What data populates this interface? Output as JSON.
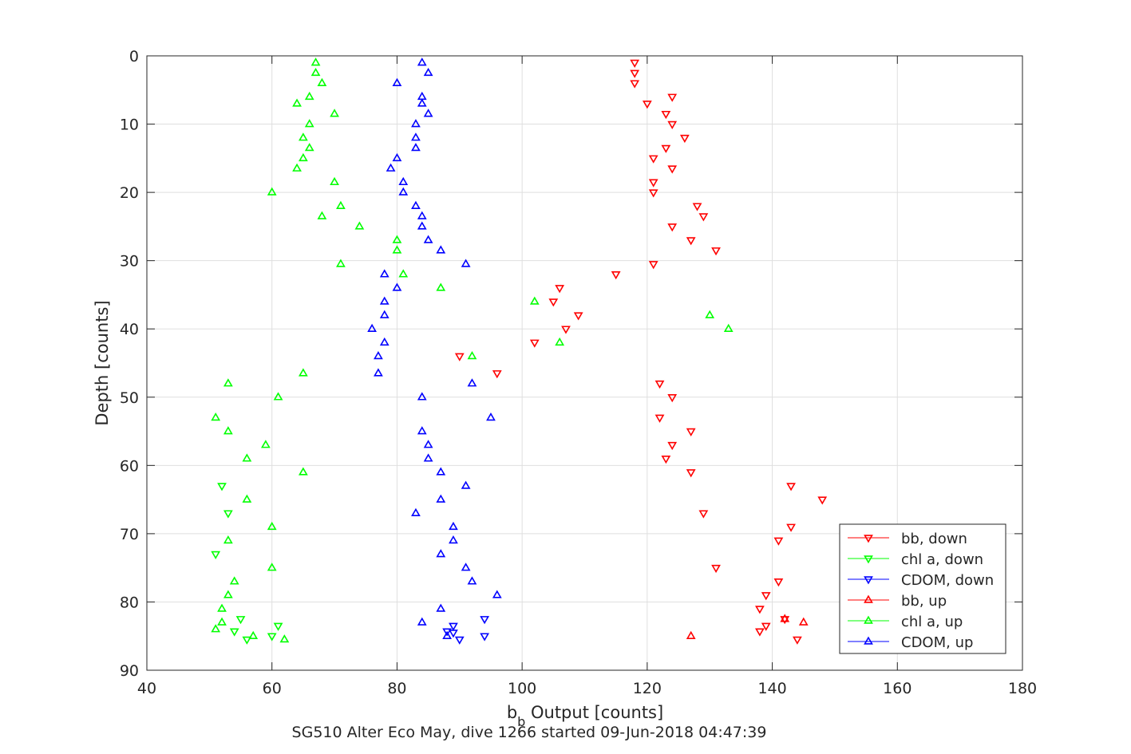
{
  "chart_data": {
    "type": "scatter",
    "title": "",
    "caption": "SG510 Alter Eco May, dive 1266 started 09-Jun-2018 04:47:39",
    "xlabel_main": "b",
    "xlabel_sub": "b",
    "xlabel_rest": " Output [counts]",
    "ylabel": "Depth [counts]",
    "xlim": [
      40,
      180
    ],
    "ylim": [
      0,
      90
    ],
    "y_reversed": true,
    "grid": true,
    "legend_position": "bottom-right",
    "xticks": [
      "40",
      "60",
      "80",
      "100",
      "120",
      "140",
      "160",
      "180"
    ],
    "yticks": [
      "0",
      "10",
      "20",
      "30",
      "40",
      "50",
      "60",
      "70",
      "80",
      "90"
    ],
    "series": [
      {
        "name": "bb, down",
        "color": "#ff0000",
        "marker": "triangle-down",
        "points": [
          [
            118,
            1
          ],
          [
            118,
            2.5
          ],
          [
            118,
            4
          ],
          [
            124,
            6
          ],
          [
            120,
            7
          ],
          [
            123,
            8.5
          ],
          [
            124,
            10
          ],
          [
            126,
            12
          ],
          [
            123,
            13.5
          ],
          [
            121,
            15
          ],
          [
            124,
            16.5
          ],
          [
            121,
            18.5
          ],
          [
            121,
            20
          ],
          [
            128,
            22
          ],
          [
            129,
            23.5
          ],
          [
            124,
            25
          ],
          [
            127,
            27
          ],
          [
            131,
            28.5
          ],
          [
            121,
            30.5
          ],
          [
            115,
            32
          ],
          [
            106,
            34
          ],
          [
            105,
            36
          ],
          [
            109,
            38
          ],
          [
            107,
            40
          ],
          [
            102,
            42
          ],
          [
            90,
            44
          ],
          [
            96,
            46.5
          ],
          [
            122,
            48
          ],
          [
            124,
            50
          ],
          [
            122,
            53
          ],
          [
            127,
            55
          ],
          [
            124,
            57
          ],
          [
            123,
            59
          ],
          [
            127,
            61
          ],
          [
            143,
            63
          ],
          [
            148,
            65
          ],
          [
            129,
            67
          ],
          [
            143,
            69
          ],
          [
            141,
            71
          ],
          [
            131,
            75
          ],
          [
            141,
            77
          ],
          [
            139,
            79
          ],
          [
            138,
            81
          ],
          [
            142,
            82.5
          ],
          [
            139,
            83.5
          ],
          [
            138,
            84.3
          ],
          [
            144,
            85.5
          ]
        ]
      },
      {
        "name": "chl a, down",
        "color": "#00ff00",
        "marker": "triangle-down",
        "points": [
          [
            52,
            63
          ],
          [
            53,
            67
          ],
          [
            51,
            73
          ],
          [
            55,
            82.5
          ],
          [
            54,
            84.3
          ],
          [
            60,
            85
          ],
          [
            56,
            85.5
          ],
          [
            61,
            83.5
          ]
        ]
      },
      {
        "name": "CDOM, down",
        "color": "#0000ff",
        "marker": "triangle-down",
        "points": [
          [
            94,
            82.5
          ],
          [
            89,
            83.5
          ],
          [
            88,
            84.3
          ],
          [
            89,
            84.5
          ],
          [
            94,
            85
          ],
          [
            90,
            85.5
          ]
        ]
      },
      {
        "name": "bb, up",
        "color": "#ff0000",
        "marker": "triangle-up",
        "points": [
          [
            142,
            82.5
          ],
          [
            145,
            83
          ],
          [
            127,
            85
          ]
        ]
      },
      {
        "name": "chl a, up",
        "color": "#00ff00",
        "marker": "triangle-up",
        "points": [
          [
            67,
            1
          ],
          [
            67,
            2.5
          ],
          [
            68,
            4
          ],
          [
            66,
            6
          ],
          [
            64,
            7
          ],
          [
            70,
            8.5
          ],
          [
            66,
            10
          ],
          [
            65,
            12
          ],
          [
            66,
            13.5
          ],
          [
            65,
            15
          ],
          [
            64,
            16.5
          ],
          [
            70,
            18.5
          ],
          [
            60,
            20
          ],
          [
            71,
            22
          ],
          [
            68,
            23.5
          ],
          [
            74,
            25
          ],
          [
            80,
            27
          ],
          [
            80,
            28.5
          ],
          [
            71,
            30.5
          ],
          [
            81,
            32
          ],
          [
            87,
            34
          ],
          [
            102,
            36
          ],
          [
            130,
            38
          ],
          [
            133,
            40
          ],
          [
            106,
            42
          ],
          [
            92,
            44
          ],
          [
            65,
            46.5
          ],
          [
            53,
            48
          ],
          [
            61,
            50
          ],
          [
            51,
            53
          ],
          [
            53,
            55
          ],
          [
            59,
            57
          ],
          [
            56,
            59
          ],
          [
            65,
            61
          ],
          [
            56,
            65
          ],
          [
            60,
            69
          ],
          [
            53,
            71
          ],
          [
            60,
            75
          ],
          [
            54,
            77
          ],
          [
            53,
            79
          ],
          [
            52,
            81
          ],
          [
            52,
            83
          ],
          [
            51,
            84
          ],
          [
            57,
            85
          ],
          [
            62,
            85.5
          ]
        ]
      },
      {
        "name": "CDOM, up",
        "color": "#0000ff",
        "marker": "triangle-up",
        "points": [
          [
            84,
            1
          ],
          [
            85,
            2.5
          ],
          [
            80,
            4
          ],
          [
            84,
            6
          ],
          [
            84,
            7
          ],
          [
            85,
            8.5
          ],
          [
            83,
            10
          ],
          [
            83,
            12
          ],
          [
            83,
            13.5
          ],
          [
            80,
            15
          ],
          [
            79,
            16.5
          ],
          [
            81,
            18.5
          ],
          [
            81,
            20
          ],
          [
            83,
            22
          ],
          [
            84,
            23.5
          ],
          [
            84,
            25
          ],
          [
            85,
            27
          ],
          [
            87,
            28.5
          ],
          [
            91,
            30.5
          ],
          [
            78,
            32
          ],
          [
            80,
            34
          ],
          [
            78,
            36
          ],
          [
            78,
            38
          ],
          [
            76,
            40
          ],
          [
            78,
            42
          ],
          [
            77,
            44
          ],
          [
            77,
            46.5
          ],
          [
            92,
            48
          ],
          [
            84,
            50
          ],
          [
            95,
            53
          ],
          [
            84,
            55
          ],
          [
            85,
            57
          ],
          [
            85,
            59
          ],
          [
            87,
            61
          ],
          [
            91,
            63
          ],
          [
            87,
            65
          ],
          [
            83,
            67
          ],
          [
            89,
            69
          ],
          [
            89,
            71
          ],
          [
            87,
            73
          ],
          [
            91,
            75
          ],
          [
            92,
            77
          ],
          [
            96,
            79
          ],
          [
            87,
            81
          ],
          [
            84,
            83
          ],
          [
            88,
            85
          ]
        ]
      }
    ]
  }
}
